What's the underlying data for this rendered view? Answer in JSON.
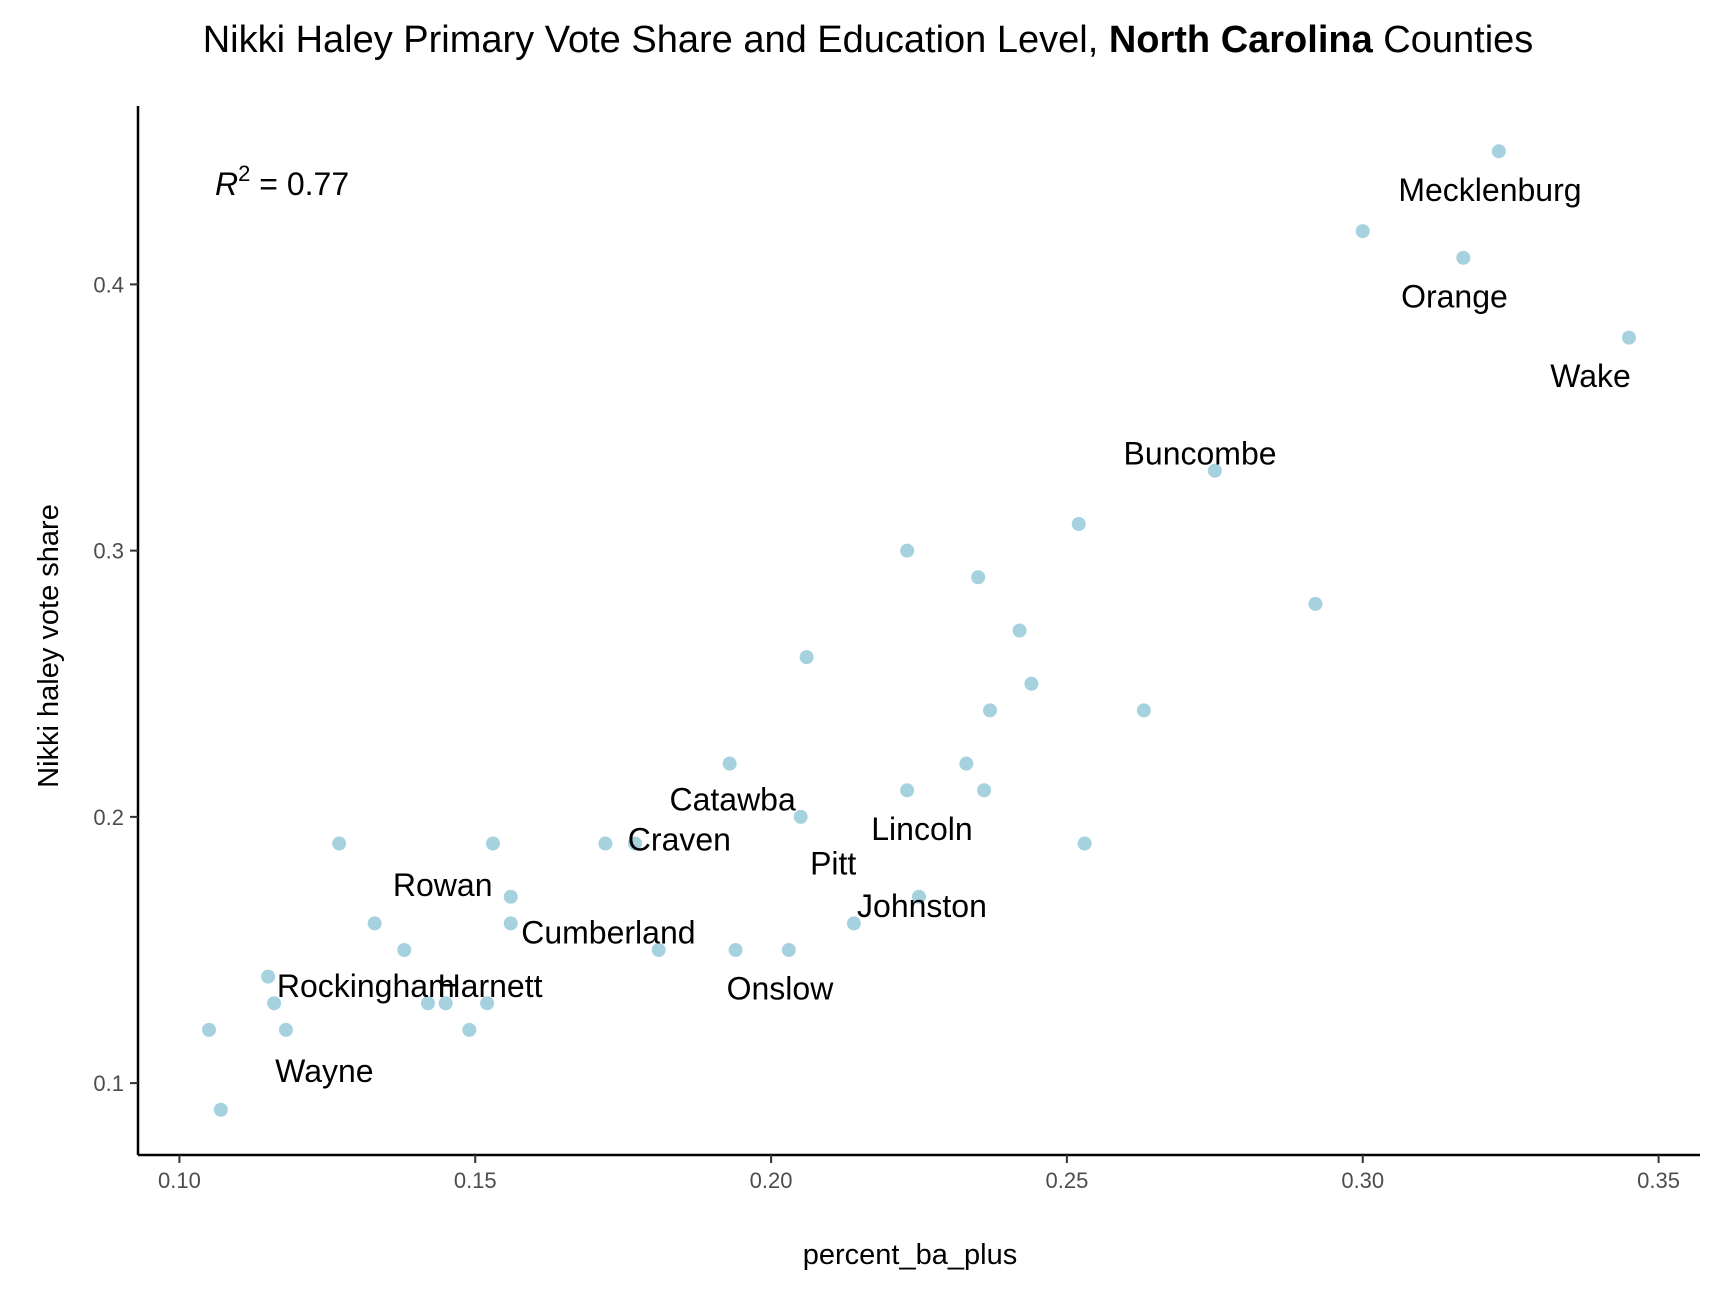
{
  "colors": {
    "point": "#a6d2e0",
    "axis": "#000000",
    "text": "#000000",
    "tick_text": "#4d4d4d"
  },
  "chart_data": {
    "type": "scatter",
    "title": {
      "prefix": "Nikki Haley Primary Vote Share and Education Level, ",
      "bold": "North Carolina",
      "suffix": " Counties"
    },
    "xlabel": "percent_ba_plus",
    "ylabel": "Nikki haley vote share",
    "xlim": [
      0.093,
      0.357
    ],
    "ylim": [
      0.073,
      0.467
    ],
    "x_ticks": [
      0.1,
      0.15,
      0.2,
      0.25,
      0.3,
      0.35
    ],
    "x_tick_labels": [
      "0.10",
      "0.15",
      "0.20",
      "0.25",
      "0.30",
      "0.35"
    ],
    "y_ticks": [
      0.1,
      0.2,
      0.3,
      0.4
    ],
    "y_tick_labels": [
      "0.1",
      "0.2",
      "0.3",
      "0.4"
    ],
    "grid": false,
    "annotation": {
      "symbol": "R",
      "superscript": "2",
      "text": " = 0.77"
    },
    "points": [
      {
        "x": 0.105,
        "y": 0.12
      },
      {
        "x": 0.107,
        "y": 0.09
      },
      {
        "x": 0.115,
        "y": 0.14
      },
      {
        "x": 0.116,
        "y": 0.13
      },
      {
        "x": 0.118,
        "y": 0.12
      },
      {
        "x": 0.127,
        "y": 0.19
      },
      {
        "x": 0.133,
        "y": 0.16
      },
      {
        "x": 0.138,
        "y": 0.15
      },
      {
        "x": 0.142,
        "y": 0.13
      },
      {
        "x": 0.145,
        "y": 0.13
      },
      {
        "x": 0.149,
        "y": 0.12
      },
      {
        "x": 0.152,
        "y": 0.13
      },
      {
        "x": 0.153,
        "y": 0.19
      },
      {
        "x": 0.156,
        "y": 0.17
      },
      {
        "x": 0.156,
        "y": 0.16
      },
      {
        "x": 0.172,
        "y": 0.19
      },
      {
        "x": 0.177,
        "y": 0.19
      },
      {
        "x": 0.181,
        "y": 0.15
      },
      {
        "x": 0.193,
        "y": 0.22
      },
      {
        "x": 0.194,
        "y": 0.15
      },
      {
        "x": 0.203,
        "y": 0.15
      },
      {
        "x": 0.205,
        "y": 0.2
      },
      {
        "x": 0.206,
        "y": 0.26
      },
      {
        "x": 0.214,
        "y": 0.16
      },
      {
        "x": 0.223,
        "y": 0.3
      },
      {
        "x": 0.223,
        "y": 0.21
      },
      {
        "x": 0.225,
        "y": 0.17
      },
      {
        "x": 0.233,
        "y": 0.22
      },
      {
        "x": 0.235,
        "y": 0.29
      },
      {
        "x": 0.236,
        "y": 0.21
      },
      {
        "x": 0.237,
        "y": 0.24
      },
      {
        "x": 0.242,
        "y": 0.27
      },
      {
        "x": 0.244,
        "y": 0.25
      },
      {
        "x": 0.252,
        "y": 0.31
      },
      {
        "x": 0.253,
        "y": 0.19
      },
      {
        "x": 0.263,
        "y": 0.24
      },
      {
        "x": 0.275,
        "y": 0.33
      },
      {
        "x": 0.292,
        "y": 0.28
      },
      {
        "x": 0.3,
        "y": 0.42
      },
      {
        "x": 0.317,
        "y": 0.41
      },
      {
        "x": 0.323,
        "y": 0.45
      },
      {
        "x": 0.345,
        "y": 0.38
      }
    ],
    "labels": [
      {
        "text": "Mecklenburg",
        "x": 0.3215,
        "y": 0.4355
      },
      {
        "text": "Orange",
        "x": 0.3155,
        "y": 0.3955
      },
      {
        "text": "Wake",
        "x": 0.3385,
        "y": 0.3655
      },
      {
        "text": "Buncombe",
        "x": 0.2725,
        "y": 0.3365
      },
      {
        "text": "Catawba",
        "x": 0.1935,
        "y": 0.2065
      },
      {
        "text": "Craven",
        "x": 0.1845,
        "y": 0.1915
      },
      {
        "text": "Lincoln",
        "x": 0.2255,
        "y": 0.1955
      },
      {
        "text": "Pitt",
        "x": 0.2105,
        "y": 0.1825
      },
      {
        "text": "Rowan",
        "x": 0.1445,
        "y": 0.1745
      },
      {
        "text": "Johnston",
        "x": 0.2255,
        "y": 0.1665
      },
      {
        "text": "Cumberland",
        "x": 0.1725,
        "y": 0.1565
      },
      {
        "text": "Onslow",
        "x": 0.2015,
        "y": 0.1355
      },
      {
        "text": "Rockingham",
        "x": 0.1315,
        "y": 0.1365
      },
      {
        "text": "Harnett",
        "x": 0.1525,
        "y": 0.1365
      },
      {
        "text": "Wayne",
        "x": 0.1245,
        "y": 0.1045
      }
    ]
  }
}
